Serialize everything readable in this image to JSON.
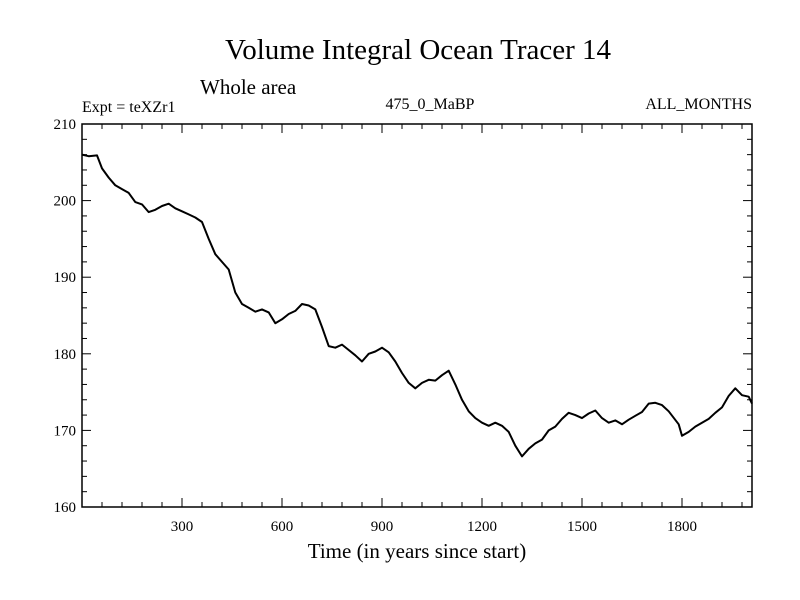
{
  "chart_data": {
    "type": "line",
    "title": "Volume Integral Ocean Tracer 14",
    "subtitle": "Whole area",
    "label_left": "Expt = teXZr1",
    "label_center": "475_0_MaBP",
    "label_right": "ALL_MONTHS",
    "xlabel": "Time (in years since start)",
    "ylabel": "",
    "xlim": [
      0,
      2010
    ],
    "ylim": [
      160,
      210
    ],
    "x_ticks": [
      300,
      600,
      900,
      1200,
      1500,
      1800
    ],
    "y_ticks": [
      160,
      170,
      180,
      190,
      200,
      210
    ],
    "line_color": "#000000",
    "series": [
      {
        "name": "Tracer 14",
        "x": [
          0,
          20,
          45,
          60,
          80,
          100,
          120,
          140,
          160,
          180,
          200,
          220,
          240,
          260,
          280,
          300,
          320,
          340,
          360,
          380,
          400,
          420,
          440,
          460,
          480,
          500,
          520,
          540,
          560,
          580,
          600,
          620,
          640,
          660,
          680,
          700,
          720,
          740,
          760,
          780,
          800,
          820,
          840,
          860,
          880,
          900,
          920,
          940,
          960,
          980,
          1000,
          1020,
          1040,
          1060,
          1080,
          1100,
          1120,
          1140,
          1160,
          1180,
          1200,
          1220,
          1240,
          1260,
          1280,
          1300,
          1320,
          1340,
          1360,
          1380,
          1400,
          1420,
          1440,
          1460,
          1480,
          1500,
          1520,
          1540,
          1560,
          1580,
          1600,
          1620,
          1640,
          1660,
          1680,
          1700,
          1720,
          1740,
          1760,
          1790,
          1800,
          1820,
          1840,
          1860,
          1880,
          1900,
          1920,
          1940,
          1960,
          1980,
          2000,
          2010
        ],
        "y": [
          206,
          205.8,
          205.9,
          204.2,
          203.0,
          202.0,
          201.5,
          201.0,
          199.8,
          199.5,
          198.5,
          198.8,
          199.3,
          199.6,
          199.0,
          198.6,
          198.2,
          197.8,
          197.2,
          195.0,
          193.0,
          192.0,
          191.0,
          188.0,
          186.5,
          186.0,
          185.5,
          185.8,
          185.4,
          184.0,
          184.5,
          185.2,
          185.6,
          186.5,
          186.3,
          185.8,
          183.5,
          181.0,
          180.8,
          181.2,
          180.5,
          179.8,
          179.0,
          180.0,
          180.3,
          180.8,
          180.2,
          179.0,
          177.5,
          176.2,
          175.5,
          176.2,
          176.6,
          176.5,
          177.2,
          177.8,
          176.0,
          174.0,
          172.5,
          171.6,
          171.0,
          170.6,
          171.0,
          170.6,
          169.8,
          168.0,
          166.6,
          167.6,
          168.3,
          168.8,
          170.0,
          170.5,
          171.5,
          172.3,
          172.0,
          171.6,
          172.2,
          172.6,
          171.6,
          171.0,
          171.3,
          170.8,
          171.4,
          171.9,
          172.4,
          173.5,
          173.6,
          173.3,
          172.5,
          170.8,
          169.3,
          169.8,
          170.5,
          171.0,
          171.5,
          172.3,
          173.0,
          174.5,
          175.5,
          174.6,
          174.4,
          173.5
        ]
      }
    ]
  }
}
